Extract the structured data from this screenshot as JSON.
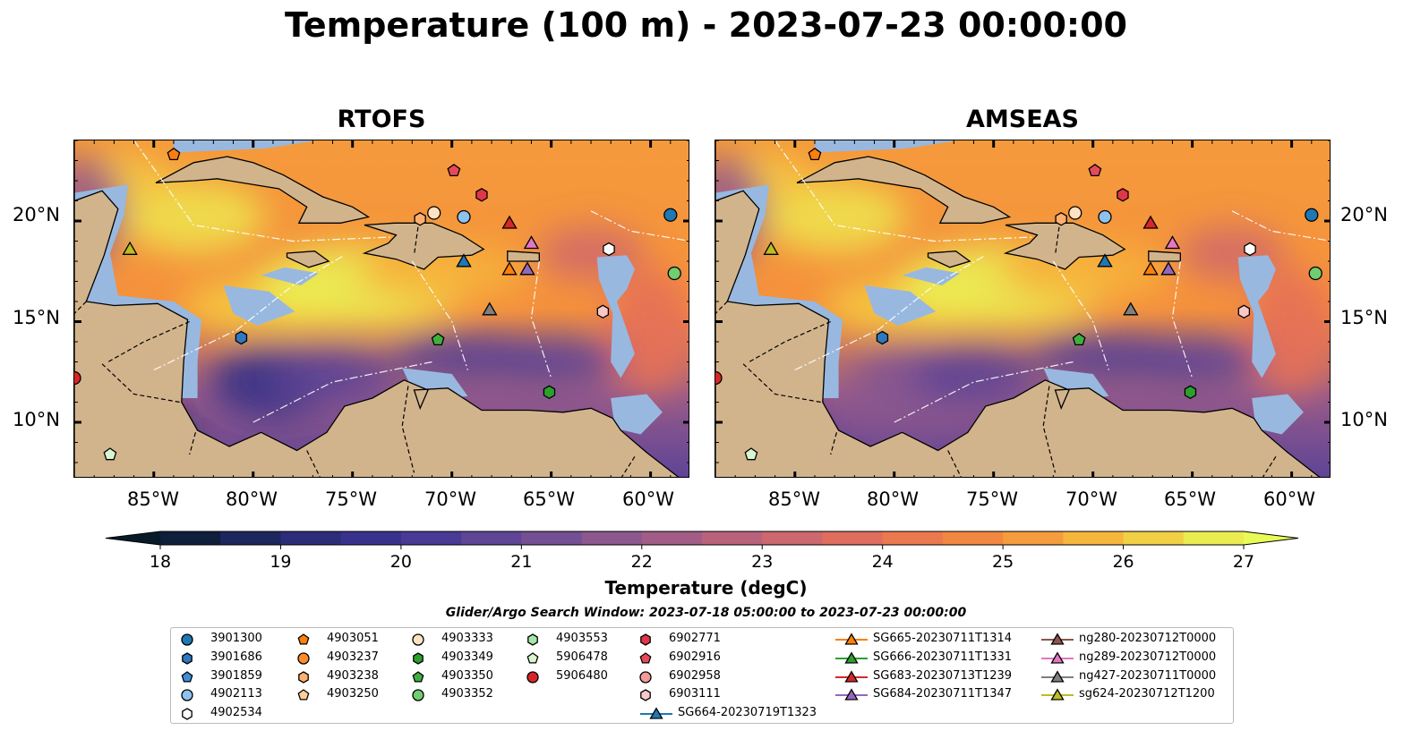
{
  "title": "Temperature (100 m) - 2023-07-23 00:00:00",
  "panels": [
    {
      "id": "rtofs",
      "title": "RTOFS",
      "lat_ticks": [
        "20°N",
        "15°N",
        "10°N"
      ]
    },
    {
      "id": "amseas",
      "title": "AMSEAS",
      "lat_ticks": [
        "20°N",
        "15°N",
        "10°N"
      ]
    }
  ],
  "lon_ticks": [
    "85°W",
    "80°W",
    "75°W",
    "70°W",
    "65°W",
    "60°W"
  ],
  "colorbar": {
    "label": "Temperature (degC)",
    "min": 18,
    "max": 27,
    "extend": "both",
    "ticks": [
      "18",
      "19",
      "20",
      "21",
      "22",
      "23",
      "24",
      "25",
      "26",
      "27"
    ]
  },
  "search_window": "Glider/Argo Search Window: 2023-07-18 05:00:00 to 2023-07-23 00:00:00",
  "legend": [
    {
      "label": "3901300",
      "marker": "circle",
      "color": "#1f77b4"
    },
    {
      "label": "3901686",
      "marker": "hexagon",
      "color": "#2f78c0"
    },
    {
      "label": "3901859",
      "marker": "pentagon",
      "color": "#3c8fd8"
    },
    {
      "label": "4902113",
      "marker": "circle",
      "color": "#8ec2ee"
    },
    {
      "label": "4902534",
      "marker": "hexagon",
      "color": "#ffffff"
    },
    {
      "label": "4903051",
      "marker": "pentagon",
      "color": "#ff7f0e"
    },
    {
      "label": "4903237",
      "marker": "circle",
      "color": "#ff8c2a"
    },
    {
      "label": "4903238",
      "marker": "hexagon",
      "color": "#ffb070"
    },
    {
      "label": "4903250",
      "marker": "pentagon",
      "color": "#ffcf9a"
    },
    {
      "label": "4903333",
      "marker": "circle",
      "color": "#ffe2c4"
    },
    {
      "label": "4903349",
      "marker": "hexagon",
      "color": "#2ca02c"
    },
    {
      "label": "4903350",
      "marker": "pentagon",
      "color": "#3fb03f"
    },
    {
      "label": "4903352",
      "marker": "circle",
      "color": "#6fce6f"
    },
    {
      "label": "4903553",
      "marker": "hexagon",
      "color": "#a6e6a6"
    },
    {
      "label": "5906478",
      "marker": "pentagon",
      "color": "#d8f6d0"
    },
    {
      "label": "5906480",
      "marker": "circle",
      "color": "#d62728"
    },
    {
      "label": "6902771",
      "marker": "hexagon",
      "color": "#e0364a"
    },
    {
      "label": "6902916",
      "marker": "pentagon",
      "color": "#e6495a"
    },
    {
      "label": "6902958",
      "marker": "circle",
      "color": "#f49a9a"
    },
    {
      "label": "6903111",
      "marker": "hexagon",
      "color": "#fbc8c8"
    },
    {
      "label": "SG664-20230719T1323",
      "marker": "triangle-line",
      "color": "#1f77b4"
    },
    {
      "label": "SG665-20230711T1314",
      "marker": "triangle-line",
      "color": "#ff7f0e"
    },
    {
      "label": "SG666-20230711T1331",
      "marker": "triangle-line",
      "color": "#2ca02c"
    },
    {
      "label": "SG683-20230713T1239",
      "marker": "triangle-line",
      "color": "#d62728"
    },
    {
      "label": "SG684-20230711T1347",
      "marker": "triangle-line",
      "color": "#9467bd"
    },
    {
      "label": "ng280-20230712T0000",
      "marker": "triangle-line",
      "color": "#8c564b"
    },
    {
      "label": "ng289-20230712T0000",
      "marker": "triangle-line",
      "color": "#e377c2"
    },
    {
      "label": "ng427-20230711T0000",
      "marker": "triangle-line",
      "color": "#7f7f7f"
    },
    {
      "label": "sg624-20230712T1200",
      "marker": "triangle-line",
      "color": "#bcbd22"
    }
  ],
  "platforms": [
    {
      "id": "3901300",
      "lon": -59.0,
      "lat": 20.3
    },
    {
      "id": "4902113",
      "lon": -69.4,
      "lat": 20.2
    },
    {
      "id": "4902534",
      "lon": -62.1,
      "lat": 18.6
    },
    {
      "id": "4903051",
      "lon": -84.0,
      "lat": 23.3
    },
    {
      "id": "4903238",
      "lon": -71.6,
      "lat": 20.1
    },
    {
      "id": "4903333",
      "lon": -70.9,
      "lat": 20.4
    },
    {
      "id": "4903350",
      "lon": -70.7,
      "lat": 14.1
    },
    {
      "id": "4903352",
      "lon": -58.8,
      "lat": 17.4
    },
    {
      "id": "4903349",
      "lon": -65.1,
      "lat": 11.5
    },
    {
      "id": "5906478",
      "lon": -87.2,
      "lat": 8.4
    },
    {
      "id": "5906480",
      "lon": -89.0,
      "lat": 12.2
    },
    {
      "id": "6902771",
      "lon": -68.5,
      "lat": 21.3
    },
    {
      "id": "6902916",
      "lon": -69.9,
      "lat": 22.5
    },
    {
      "id": "6903111",
      "lon": -62.4,
      "lat": 15.5
    },
    {
      "id": "3901686",
      "lon": -80.6,
      "lat": 14.2
    },
    {
      "id": "SG664-20230719T1323",
      "lon": -69.4,
      "lat": 18.0
    },
    {
      "id": "SG665-20230711T1314",
      "lon": -67.1,
      "lat": 17.6
    },
    {
      "id": "SG683-20230713T1239",
      "lon": -67.1,
      "lat": 19.9
    },
    {
      "id": "SG684-20230711T1347",
      "lon": -66.2,
      "lat": 17.6
    },
    {
      "id": "ng289-20230712T0000",
      "lon": -66.0,
      "lat": 18.9
    },
    {
      "id": "ng427-20230711T0000",
      "lon": -68.1,
      "lat": 15.6
    },
    {
      "id": "sg624-20230712T1200",
      "lon": -86.2,
      "lat": 18.6
    }
  ],
  "colors": {
    "land": "#d2b48c",
    "shelf": "#98b8e0"
  }
}
